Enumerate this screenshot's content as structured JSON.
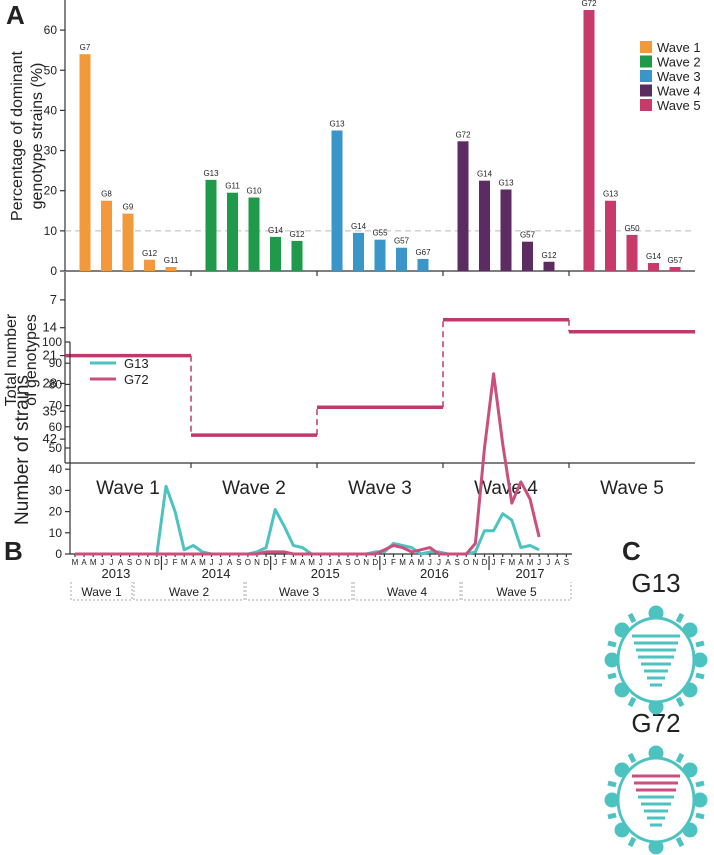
{
  "panel_labels": [
    "A",
    "B",
    "C"
  ],
  "chart_data": [
    {
      "type": "bar",
      "ylabel": [
        "Percentage of dominant",
        "genotype strains (%)"
      ],
      "ylim": [
        0,
        67
      ],
      "yticks": [
        0,
        10,
        20,
        30,
        40,
        50,
        60
      ],
      "reference_line": 10,
      "legend": "upper right",
      "series": [
        {
          "name": "Wave 1",
          "color": "#f29a3b",
          "bar_labels": [
            "G7",
            "G8",
            "G9",
            "G12",
            "G11"
          ],
          "values": [
            54,
            17.5,
            14.3,
            2.8,
            1
          ]
        },
        {
          "name": "Wave 2",
          "color": "#1e9a4a",
          "bar_labels": [
            "G13",
            "G11",
            "G10",
            "G14",
            "G12"
          ],
          "values": [
            22.7,
            19.5,
            18.3,
            8.5,
            7.5
          ]
        },
        {
          "name": "Wave 3",
          "color": "#3a95c9",
          "bar_labels": [
            "G13",
            "G14",
            "G55",
            "G57",
            "G67"
          ],
          "values": [
            35,
            9.5,
            7.8,
            5.8,
            3
          ]
        },
        {
          "name": "Wave 4",
          "color": "#5c2b62",
          "bar_labels": [
            "G72",
            "G14",
            "G13",
            "G57",
            "G12"
          ],
          "values": [
            32.3,
            22.5,
            20.3,
            7.3,
            2.3
          ]
        },
        {
          "name": "Wave 5",
          "color": "#c73a6a",
          "bar_labels": [
            "G72",
            "G13",
            "G50",
            "G14",
            "G57"
          ],
          "values": [
            65,
            17.5,
            9,
            2,
            1
          ]
        }
      ]
    },
    {
      "type": "step",
      "ylabel": [
        "Total number",
        "of genotypes"
      ],
      "categories": [
        "Wave 1",
        "Wave 2",
        "Wave 3",
        "Wave 4",
        "Wave 5"
      ],
      "values": [
        21,
        41,
        34,
        12,
        15
      ],
      "color": "#c0396b",
      "ylim": [
        0,
        48
      ],
      "inverted": true,
      "yticks": [
        7,
        14,
        21,
        28,
        35,
        42
      ]
    },
    {
      "type": "line",
      "ylabel": "Number of strains",
      "ylim": [
        0,
        100
      ],
      "yticks": [
        0,
        10,
        20,
        30,
        40,
        50,
        60,
        70,
        80,
        90,
        100
      ],
      "legend": "upper left",
      "categories": [
        "M",
        "A",
        "M",
        "J",
        "J",
        "A",
        "S",
        "O",
        "N",
        "D",
        "J",
        "F",
        "M",
        "A",
        "M",
        "J",
        "J",
        "A",
        "S",
        "O",
        "N",
        "D",
        "J",
        "F",
        "M",
        "A",
        "M",
        "J",
        "J",
        "A",
        "S",
        "O",
        "N",
        "D",
        "J",
        "F",
        "M",
        "A",
        "M",
        "J",
        "J",
        "A",
        "S",
        "O",
        "N",
        "D",
        "J",
        "F",
        "M",
        "A",
        "M",
        "J",
        "J",
        "A",
        "S"
      ],
      "years": [
        "2013",
        "2014",
        "2015",
        "2016",
        "2017"
      ],
      "periods": [
        "Wave 1",
        "Wave 2",
        "Wave 3",
        "Wave 4",
        "Wave 5"
      ],
      "series": [
        {
          "name": "G13",
          "color": "#4cc3c0",
          "values": [
            0,
            0,
            0,
            0,
            0,
            0,
            0,
            0,
            0,
            0,
            32,
            20,
            2,
            4,
            1,
            0,
            0,
            0,
            0,
            0,
            1,
            3,
            21,
            13,
            4,
            3,
            0,
            0,
            0,
            0,
            0,
            0,
            0,
            1,
            1,
            5,
            4,
            3,
            0,
            1,
            1,
            0,
            0,
            0,
            1,
            11,
            11,
            19,
            16,
            3,
            4,
            2,
            null,
            null,
            null
          ]
        },
        {
          "name": "G72",
          "color": "#c94f7c",
          "values": [
            0,
            0,
            0,
            0,
            0,
            0,
            0,
            0,
            0,
            0,
            0,
            0,
            0,
            0,
            0,
            0,
            0,
            0,
            0,
            0,
            0,
            1,
            1,
            1,
            0,
            0,
            0,
            0,
            0,
            0,
            0,
            0,
            0,
            0,
            2,
            4,
            3,
            1,
            2,
            3,
            0,
            0,
            0,
            0,
            5,
            50,
            85,
            52,
            24,
            34,
            26,
            8,
            null,
            null,
            null
          ]
        }
      ]
    }
  ],
  "diagram": {
    "labels": [
      "G13",
      "G72"
    ]
  }
}
